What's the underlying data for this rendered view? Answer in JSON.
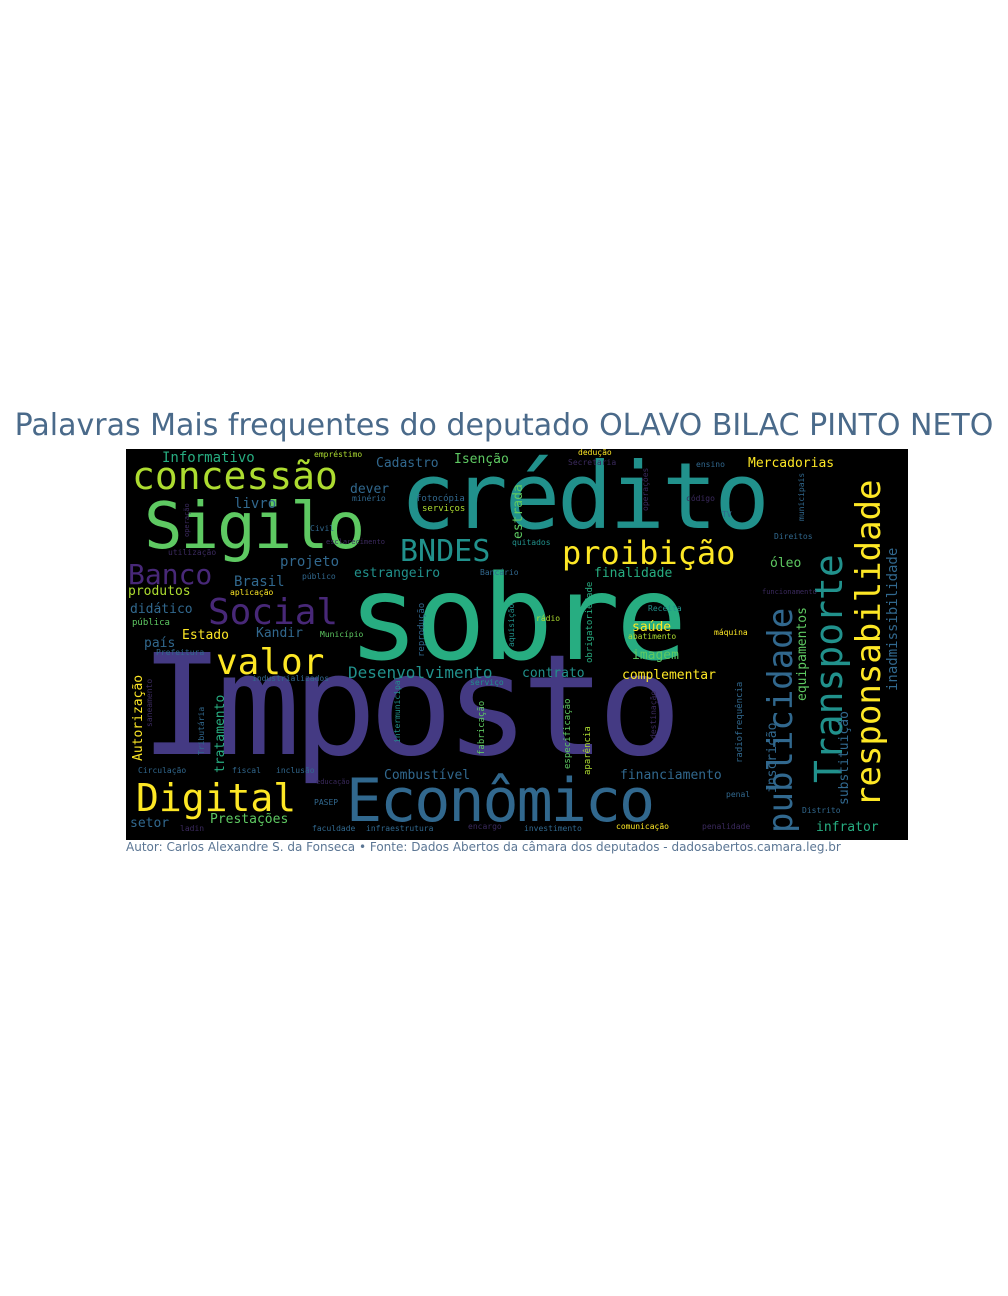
{
  "title": "Palavras Mais frequentes do deputado OLAVO BILAC PINTO NETO",
  "footer": "Autor: Carlos Alexandre S. da Fonseca • Fonte: Dados Abertos da câmara dos deputados - dadosabertos.camara.leg.br",
  "words": {
    "imposto": "Imposto",
    "sobre": "sobre",
    "credito": "crédito",
    "economico": "Econômico",
    "sigilo": "Sigilo",
    "concessao": "concessão",
    "responsabilidade": "responsabilidade",
    "transporte": "Transporte",
    "publicidade": "publicidade",
    "proibicao": "proibição",
    "bndes": "BNDES",
    "social": "Social",
    "valor": "valor",
    "digital": "Digital",
    "banco": "Banco",
    "inadmissibilidade": "inadmissibilidade",
    "desenvolvimento": "Desenvolvimento",
    "informativo": "Informativo",
    "cadastro": "Cadastro",
    "isencao": "Isenção",
    "mercadorias": "Mercadorias",
    "dever": "dever",
    "livro": "livro",
    "brasil": "Brasil",
    "projeto": "projeto",
    "estrangeiro": "estrangeiro",
    "finalidade": "finalidade",
    "oleo": "óleo",
    "produtos": "produtos",
    "didatico": "didático",
    "estado": "Estado",
    "kandir": "Kandir",
    "pais": "país",
    "contrato": "contrato",
    "complementar": "complementar",
    "imagem": "imagem",
    "saude": "saúde",
    "autorizacao": "Autorização",
    "tratamento": "tratamento",
    "combustivel": "Combustível",
    "financiamento": "financiamento",
    "prestacoes": "Prestações",
    "setor": "setor",
    "infrator": "infrator",
    "equipamentos": "equipamentos",
    "inscricao": "inscrição",
    "substituicao": "substituição",
    "estrada": "estrada",
    "fotocopia": "fotocópia",
    "servicos": "serviços",
    "minerio": "minério",
    "civil": "Civil",
    "utilizacao": "utilização",
    "publico": "público",
    "aplicacao": "aplicação",
    "publica": "pública",
    "municipio": "Município",
    "bancario": "Bancário",
    "quitados": "quitados",
    "aquisicao": "aquisição",
    "radio": "rádio",
    "receita": "Receita",
    "abatimento": "abatimento",
    "maquina": "máquina",
    "emprestimo": "empréstimo",
    "deducao": "dedução",
    "secretaria": "Secretaria",
    "ensino": "ensino",
    "codigo": "código",
    "tv": "TV",
    "municipais": "municipais",
    "direitos": "Direitos",
    "prefeitura": "Prefeitura",
    "industrializados": "industrializados",
    "servico": "serviço",
    "fiscal": "fiscal",
    "inclusao": "inclusão",
    "circulacao": "Circulação",
    "pasep": "PASEP",
    "ladin": "ladin",
    "faculdade": "faculdade",
    "infraestrutura": "infraestrutura",
    "investimento": "investimento",
    "comunicacao": "comunicação",
    "penalidade": "penalidade",
    "distrito": "Distrito",
    "penal": "penal",
    "tributaria": "Tributária",
    "saneamento": "saneamento",
    "intermunicipal": "intermunicipal",
    "fabricacao": "fabricação",
    "especificacao": "especificação",
    "aparencia": "aparência",
    "radiofrequencia": "radiofrequência",
    "reproducao": "reprodução",
    "obrigatoriedade": "obrigatoriedade",
    "operacoes": "operações",
    "operacao": "operação",
    "esclarecimento": "esclarecimento",
    "educacao": "educação",
    "encargo": "encargo",
    "destinacao": "destinação",
    "funcionamento": "funcionamento"
  },
  "colors": {
    "purple": "#443a83",
    "deep_purple": "#482878",
    "blue": "#31688e",
    "teal": "#21918c",
    "green": "#27ad81",
    "lime": "#5ec962",
    "yellow_green": "#addc30",
    "yellow": "#fde725",
    "dark": "#3b2a5e"
  }
}
